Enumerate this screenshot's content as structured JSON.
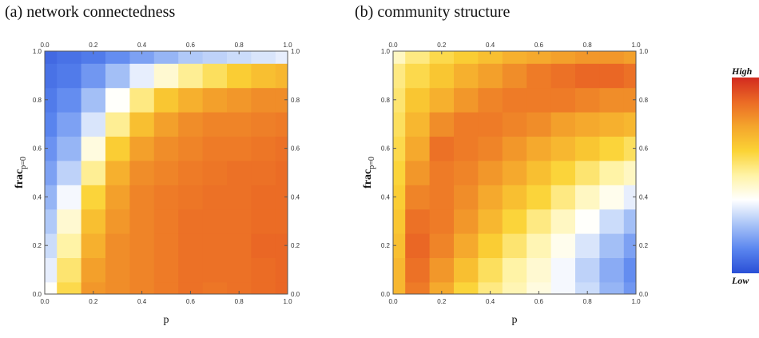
{
  "chart_data": [
    {
      "type": "heatmap",
      "title": "(a) network connectedness",
      "xlabel": "p",
      "ylabel": "frac_{p=0}",
      "xlim": [
        0,
        1
      ],
      "ylim": [
        0,
        1
      ],
      "x_ticks": [
        "0.0",
        "0.2",
        "0.4",
        "0.6",
        "0.8",
        "1.0"
      ],
      "y_ticks": [
        "0.0",
        "0.2",
        "0.4",
        "0.6",
        "0.8",
        "1.0"
      ],
      "x": [
        0,
        0.1,
        0.2,
        0.3,
        0.4,
        0.5,
        0.6,
        0.7,
        0.8,
        0.9,
        1.0
      ],
      "y": [
        0,
        0.1,
        0.2,
        0.3,
        0.4,
        0.5,
        0.6,
        0.7,
        0.8,
        0.9,
        1.0
      ],
      "z": [
        [
          0.38,
          0.6,
          0.78,
          0.8,
          0.82,
          0.84,
          0.86,
          0.85,
          0.86,
          0.87,
          0.88
        ],
        [
          0.34,
          0.56,
          0.76,
          0.8,
          0.82,
          0.84,
          0.86,
          0.86,
          0.86,
          0.87,
          0.88
        ],
        [
          0.3,
          0.5,
          0.72,
          0.8,
          0.82,
          0.84,
          0.86,
          0.86,
          0.86,
          0.88,
          0.88
        ],
        [
          0.26,
          0.44,
          0.68,
          0.78,
          0.82,
          0.84,
          0.86,
          0.86,
          0.86,
          0.87,
          0.87
        ],
        [
          0.22,
          0.36,
          0.62,
          0.76,
          0.82,
          0.84,
          0.85,
          0.86,
          0.86,
          0.87,
          0.87
        ],
        [
          0.18,
          0.28,
          0.52,
          0.72,
          0.8,
          0.82,
          0.84,
          0.85,
          0.86,
          0.86,
          0.87
        ],
        [
          0.15,
          0.22,
          0.42,
          0.64,
          0.76,
          0.8,
          0.82,
          0.84,
          0.84,
          0.85,
          0.86
        ],
        [
          0.12,
          0.18,
          0.32,
          0.52,
          0.68,
          0.76,
          0.8,
          0.82,
          0.82,
          0.83,
          0.84
        ],
        [
          0.1,
          0.14,
          0.24,
          0.38,
          0.54,
          0.66,
          0.72,
          0.76,
          0.78,
          0.8,
          0.8
        ],
        [
          0.08,
          0.1,
          0.16,
          0.24,
          0.34,
          0.44,
          0.52,
          0.58,
          0.64,
          0.68,
          0.7
        ],
        [
          0.06,
          0.08,
          0.1,
          0.14,
          0.18,
          0.22,
          0.26,
          0.28,
          0.3,
          0.32,
          0.34
        ]
      ]
    },
    {
      "type": "heatmap",
      "title": "(b) community structure",
      "xlabel": "p",
      "ylabel": "frac_{p=0}",
      "xlim": [
        0,
        1
      ],
      "ylim": [
        0,
        1
      ],
      "x_ticks": [
        "0.0",
        "0.2",
        "0.4",
        "0.6",
        "0.8",
        "1.0"
      ],
      "y_ticks": [
        "0.0",
        "0.2",
        "0.4",
        "0.6",
        "0.8",
        "1.0"
      ],
      "x": [
        0,
        0.1,
        0.2,
        0.3,
        0.4,
        0.5,
        0.6,
        0.7,
        0.8,
        0.9,
        1.0
      ],
      "y": [
        0,
        0.1,
        0.2,
        0.3,
        0.4,
        0.5,
        0.6,
        0.7,
        0.8,
        0.9,
        1.0
      ],
      "z": [
        [
          0.7,
          0.84,
          0.74,
          0.62,
          0.54,
          0.48,
          0.42,
          0.36,
          0.3,
          0.22,
          0.16
        ],
        [
          0.7,
          0.86,
          0.78,
          0.68,
          0.58,
          0.5,
          0.44,
          0.36,
          0.28,
          0.2,
          0.14
        ],
        [
          0.68,
          0.88,
          0.82,
          0.74,
          0.64,
          0.56,
          0.48,
          0.4,
          0.32,
          0.24,
          0.18
        ],
        [
          0.66,
          0.86,
          0.84,
          0.78,
          0.7,
          0.62,
          0.54,
          0.46,
          0.38,
          0.3,
          0.24
        ],
        [
          0.64,
          0.82,
          0.84,
          0.8,
          0.74,
          0.68,
          0.62,
          0.54,
          0.46,
          0.4,
          0.34
        ],
        [
          0.62,
          0.78,
          0.84,
          0.82,
          0.78,
          0.74,
          0.68,
          0.62,
          0.56,
          0.5,
          0.46
        ],
        [
          0.6,
          0.74,
          0.86,
          0.84,
          0.82,
          0.78,
          0.74,
          0.7,
          0.66,
          0.62,
          0.58
        ],
        [
          0.58,
          0.7,
          0.8,
          0.84,
          0.84,
          0.82,
          0.8,
          0.76,
          0.74,
          0.72,
          0.7
        ],
        [
          0.56,
          0.66,
          0.72,
          0.78,
          0.82,
          0.84,
          0.84,
          0.84,
          0.82,
          0.8,
          0.8
        ],
        [
          0.54,
          0.6,
          0.66,
          0.72,
          0.76,
          0.8,
          0.84,
          0.86,
          0.88,
          0.88,
          0.86
        ],
        [
          0.46,
          0.54,
          0.6,
          0.64,
          0.68,
          0.72,
          0.74,
          0.76,
          0.78,
          0.78,
          0.76
        ]
      ]
    }
  ],
  "legend": {
    "high_label": "High",
    "low_label": "Low",
    "colors": [
      "#2a4fd6",
      "#5b86ef",
      "#a9c4f7",
      "#ffffff",
      "#fff3a6",
      "#fbd335",
      "#f4a52c",
      "#eb6a25",
      "#d22a1f"
    ]
  }
}
